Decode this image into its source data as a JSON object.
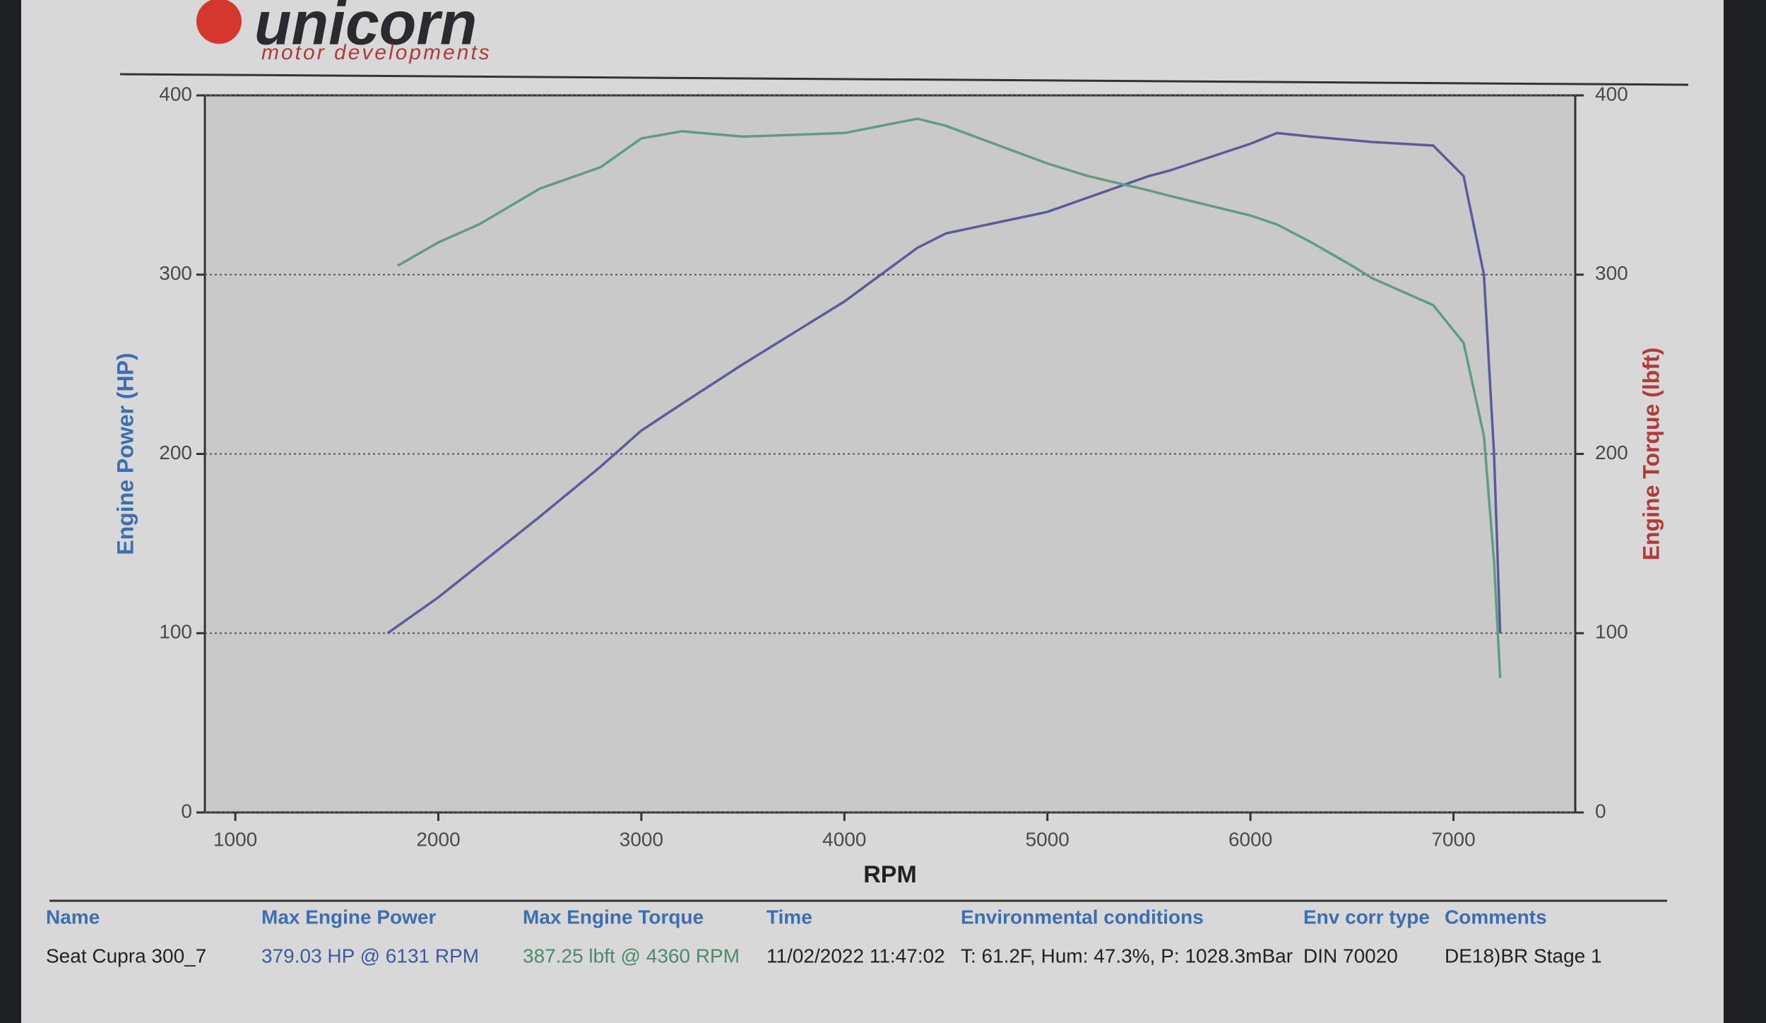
{
  "header": {
    "logo": "unicorn",
    "tagline": "motor developments"
  },
  "chart_data": {
    "type": "line",
    "x_label": "RPM",
    "y_label": "Engine Power (HP)",
    "y2_label": "Engine Torque (lbft)",
    "x": [
      1750,
      1800,
      2000,
      2200,
      2500,
      2800,
      3000,
      3200,
      3500,
      4000,
      4360,
      4500,
      5000,
      5200,
      5500,
      5600,
      6000,
      6131,
      6300,
      6500,
      6600,
      6900,
      7050,
      7150,
      7200,
      7230
    ],
    "series": [
      {
        "color": "#5b5b9c",
        "axis": "y",
        "values": [
          100,
          104,
          120,
          138,
          165,
          193,
          213,
          228,
          250,
          285,
          315,
          323,
          335,
          343,
          355,
          358,
          373,
          379,
          377,
          375,
          374,
          372,
          355,
          300,
          200,
          100
        ]
      },
      {
        "color": "#5f9c82",
        "axis": "y2",
        "values": [
          null,
          305,
          318,
          328,
          348,
          360,
          376,
          380,
          377,
          379,
          387,
          383,
          362,
          355,
          347,
          344,
          333,
          328,
          318,
          305,
          298,
          283,
          262,
          210,
          140,
          75
        ]
      }
    ],
    "xlim": [
      850,
      7600
    ],
    "xticks": [
      1000,
      2000,
      3000,
      4000,
      5000,
      6000,
      7000
    ],
    "ylim": [
      0,
      400
    ],
    "yticks": [
      0,
      100,
      200,
      300,
      400
    ],
    "y2lim": [
      0,
      400
    ],
    "y2ticks": [
      0,
      100,
      200,
      300,
      400
    ],
    "grid": true
  },
  "table": {
    "columns": [
      "Name",
      "Max Engine Power",
      "Max Engine Torque",
      "Time",
      "Environmental conditions",
      "Env corr type",
      "Comments"
    ],
    "rows": [
      [
        "Seat Cupra 300_7",
        "379.03 HP @ 6131 RPM",
        "387.25 lbft @ 4360 RPM",
        "11/02/2022 11:47:02",
        "T: 61.2F, Hum: 47.3%, P: 1028.3mBar",
        "DIN 70020",
        "DE18)BR Stage 1"
      ]
    ]
  }
}
